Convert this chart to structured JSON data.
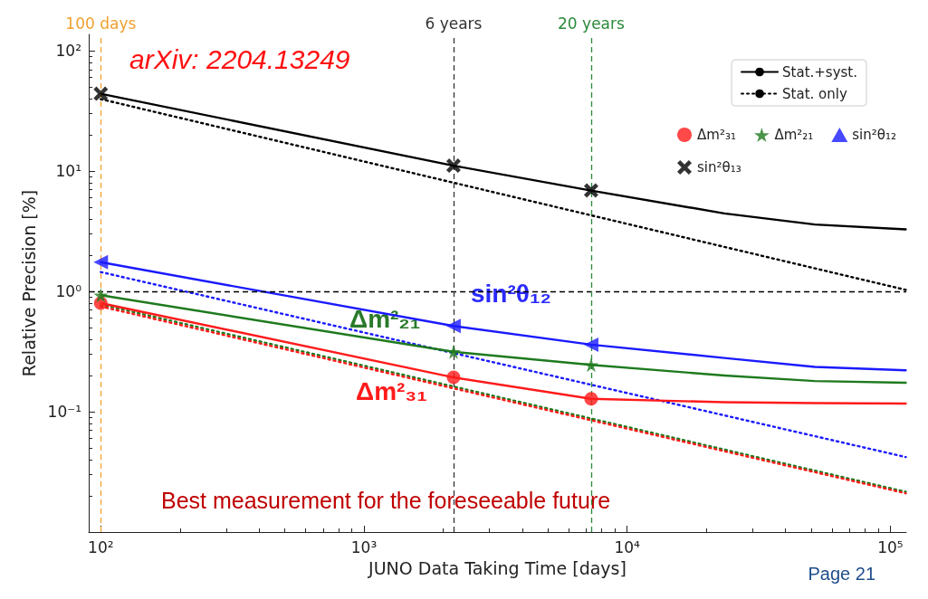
{
  "chart_data": {
    "type": "line",
    "xlabel": "JUNO Data Taking Time [days]",
    "ylabel": "Relative Precision [%]",
    "log": "xy",
    "grid": false,
    "legend": "top right",
    "xlim": [
      90,
      115000
    ],
    "xticks": [
      {
        "value": 100,
        "label": "10²"
      },
      {
        "value": 1000,
        "label": "10³"
      },
      {
        "value": 10000,
        "label": "10⁴"
      },
      {
        "value": 100000,
        "label": "10⁵"
      }
    ],
    "ylim": [
      0.01,
      137
    ],
    "yticks": [
      {
        "value": 0.1,
        "label": "10⁻¹"
      },
      {
        "value": 1,
        "label": "10⁰"
      },
      {
        "value": 10,
        "label": "10¹"
      },
      {
        "value": 100,
        "label": "10²"
      }
    ],
    "series": [
      {
        "name": "Stat.+syst.",
        "color": "#000000",
        "line_style": "solid",
        "marker": "none",
        "x": [
          100,
          2190,
          7300,
          23400,
          51700,
          114500
        ],
        "values": [
          44,
          11.1,
          6.9,
          4.45,
          3.6,
          3.28
        ]
      },
      {
        "name": "Stat. only",
        "color": "#000000",
        "line_style": "dotted",
        "marker": "none",
        "x": [
          100,
          114500
        ],
        "values": [
          39.7,
          1.03
        ]
      },
      {
        "color": "#1a1aff",
        "line_style": "solid",
        "marker": "none",
        "x": [
          100,
          2190,
          7300,
          23400,
          51700,
          114500
        ],
        "values": [
          1.75,
          0.516,
          0.361,
          0.28,
          0.236,
          0.221
        ]
      },
      {
        "color": "#1a1aff",
        "line_style": "dotted",
        "marker": "none",
        "x": [
          100,
          114500
        ],
        "values": [
          1.45,
          0.042
        ]
      },
      {
        "color": "#1e7a1e",
        "line_style": "solid",
        "marker": "none",
        "x": [
          100,
          2190,
          7300,
          23400,
          51700,
          114500
        ],
        "values": [
          0.93,
          0.315,
          0.245,
          0.2,
          0.18,
          0.174
        ]
      },
      {
        "color": "#1e7a1e",
        "line_style": "dotted",
        "marker": "none",
        "x": [
          100,
          114500
        ],
        "values": [
          0.78,
          0.0216
        ]
      },
      {
        "color": "#ff1a1a",
        "line_style": "solid",
        "marker": "none",
        "x": [
          100,
          2190,
          7300,
          23400,
          51700,
          114500
        ],
        "values": [
          0.8,
          0.193,
          0.128,
          0.12,
          0.118,
          0.117
        ]
      },
      {
        "color": "#ff1a1a",
        "line_style": "dotted",
        "marker": "none",
        "x": [
          100,
          114500
        ],
        "values": [
          0.75,
          0.021
        ]
      },
      {
        "name": "Δm²₃₁",
        "type": "scatter",
        "color": "#ff1a1a",
        "marker": "circle",
        "x": [
          100,
          2190,
          7300
        ],
        "values": [
          0.8,
          0.193,
          0.128
        ]
      },
      {
        "name": "Δm²₂₁",
        "type": "scatter",
        "color": "#1e7a1e",
        "marker": "star",
        "x": [
          100,
          2190,
          7300
        ],
        "values": [
          0.93,
          0.315,
          0.245
        ]
      },
      {
        "name": "sin²θ₁₂",
        "type": "scatter",
        "color": "#1a1aff",
        "marker": "triangle",
        "x": [
          100,
          2190,
          7300
        ],
        "values": [
          1.75,
          0.516,
          0.361
        ]
      },
      {
        "name": "sin²θ₁₃",
        "type": "scatter",
        "color": "#000000",
        "marker": "cross",
        "x": [
          100,
          2190,
          7300
        ],
        "values": [
          44,
          11.1,
          6.9
        ]
      }
    ],
    "ref_lines": [
      {
        "axis": "y",
        "value": 1,
        "color": "#000000",
        "line_style": "dashed"
      },
      {
        "axis": "x",
        "value": 100,
        "label": "100 days",
        "color": "#f0a030",
        "line_style": "dashed"
      },
      {
        "axis": "x",
        "value": 2190,
        "label": "6 years",
        "color": "#333333",
        "line_style": "dashed"
      },
      {
        "axis": "x",
        "value": 7300,
        "label": "20 years",
        "color": "#2a8a3a",
        "line_style": "dashed"
      }
    ],
    "annotations": [
      "arXiv: 2204.13249",
      "Best measurement for the foreseeable future",
      "Page 21",
      "sin²θ₁₂",
      "Δm²₂₁",
      "Δm²₃₁"
    ]
  }
}
